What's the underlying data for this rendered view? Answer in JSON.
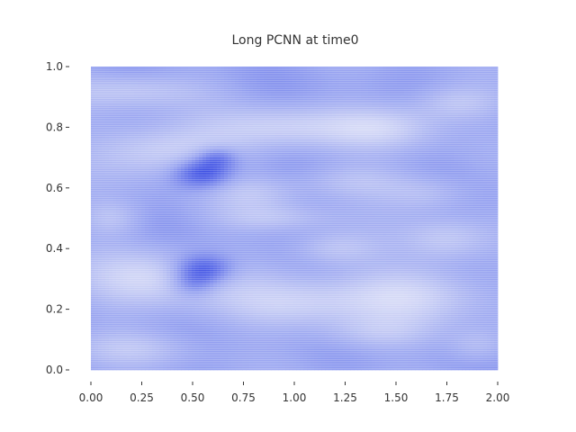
{
  "chart_data": {
    "type": "heatmap",
    "title": "Long PCNN at time0",
    "xlabel": "",
    "ylabel": "",
    "xlim": [
      0.0,
      2.0
    ],
    "ylim": [
      0.0,
      1.0
    ],
    "x_ticks": [
      "0.00",
      "0.25",
      "0.50",
      "0.75",
      "1.00",
      "1.25",
      "1.50",
      "1.75",
      "2.00"
    ],
    "y_ticks": [
      "0.0",
      "0.2",
      "0.4",
      "0.6",
      "0.8",
      "1.0"
    ],
    "grid": false,
    "colormap": "bwr",
    "colors": {
      "background_field": "#9aa6f0",
      "light_region": "#e6e8f8",
      "dark_region": "#3c4ee0",
      "text": "#333333"
    },
    "features": [
      {
        "x": 0.55,
        "y": 0.65,
        "sx": 0.1,
        "sy": 0.035,
        "v": -1.0
      },
      {
        "x": 0.62,
        "y": 0.7,
        "sx": 0.07,
        "sy": 0.025,
        "v": -0.6
      },
      {
        "x": 0.55,
        "y": 0.33,
        "sx": 0.1,
        "sy": 0.035,
        "v": -1.0
      },
      {
        "x": 0.5,
        "y": 0.28,
        "sx": 0.08,
        "sy": 0.03,
        "v": -0.5
      },
      {
        "x": 0.35,
        "y": 0.72,
        "sx": 0.25,
        "sy": 0.06,
        "v": 0.7
      },
      {
        "x": 0.95,
        "y": 0.8,
        "sx": 0.25,
        "sy": 0.05,
        "v": 0.6
      },
      {
        "x": 1.45,
        "y": 0.8,
        "sx": 0.2,
        "sy": 0.05,
        "v": 0.6
      },
      {
        "x": 1.8,
        "y": 0.88,
        "sx": 0.15,
        "sy": 0.04,
        "v": 0.5
      },
      {
        "x": 0.3,
        "y": 0.3,
        "sx": 0.25,
        "sy": 0.07,
        "v": 0.7
      },
      {
        "x": 1.0,
        "y": 0.22,
        "sx": 0.3,
        "sy": 0.06,
        "v": 0.6
      },
      {
        "x": 1.6,
        "y": 0.25,
        "sx": 0.25,
        "sy": 0.07,
        "v": 0.6
      },
      {
        "x": 1.2,
        "y": 0.4,
        "sx": 0.15,
        "sy": 0.04,
        "v": 0.5
      },
      {
        "x": 1.75,
        "y": 0.43,
        "sx": 0.15,
        "sy": 0.05,
        "v": 0.5
      },
      {
        "x": 0.2,
        "y": 0.92,
        "sx": 0.25,
        "sy": 0.04,
        "v": 0.5
      },
      {
        "x": 0.8,
        "y": 0.58,
        "sx": 0.15,
        "sy": 0.04,
        "v": 0.4
      },
      {
        "x": 1.3,
        "y": 0.62,
        "sx": 0.2,
        "sy": 0.04,
        "v": 0.4
      },
      {
        "x": 0.9,
        "y": 0.5,
        "sx": 0.2,
        "sy": 0.03,
        "v": 0.4
      },
      {
        "x": 1.65,
        "y": 0.58,
        "sx": 0.15,
        "sy": 0.04,
        "v": 0.4
      },
      {
        "x": 0.1,
        "y": 0.5,
        "sx": 0.1,
        "sy": 0.04,
        "v": 0.4
      },
      {
        "x": 1.9,
        "y": 0.08,
        "sx": 0.1,
        "sy": 0.04,
        "v": 0.4
      },
      {
        "x": 0.2,
        "y": 0.07,
        "sx": 0.2,
        "sy": 0.04,
        "v": 0.4
      },
      {
        "x": 1.4,
        "y": 0.12,
        "sx": 0.2,
        "sy": 0.04,
        "v": 0.4
      }
    ]
  }
}
